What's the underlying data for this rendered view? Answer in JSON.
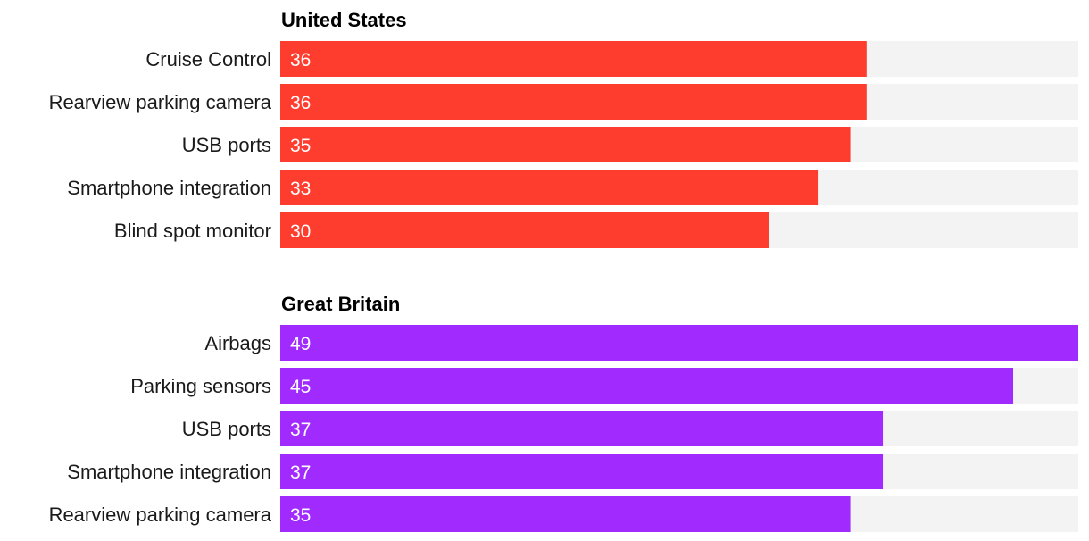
{
  "chart_data": [
    {
      "type": "bar",
      "orientation": "horizontal",
      "title": "United States",
      "color": "#ff3d2e",
      "track_color": "#f3f3f3",
      "categories": [
        "Cruise Control",
        "Rearview parking camera",
        "USB ports",
        "Smartphone integration",
        "Blind spot monitor"
      ],
      "values": [
        36,
        36,
        35,
        33,
        30
      ],
      "xlim": [
        0,
        49
      ]
    },
    {
      "type": "bar",
      "orientation": "horizontal",
      "title": "Great Britain",
      "color": "#a12bff",
      "track_color": "#f3f3f3",
      "categories": [
        "Airbags",
        "Parking sensors",
        "USB ports",
        "Smartphone integration",
        "Rearview parking camera"
      ],
      "values": [
        49,
        45,
        37,
        37,
        35
      ],
      "xlim": [
        0,
        49
      ]
    }
  ]
}
